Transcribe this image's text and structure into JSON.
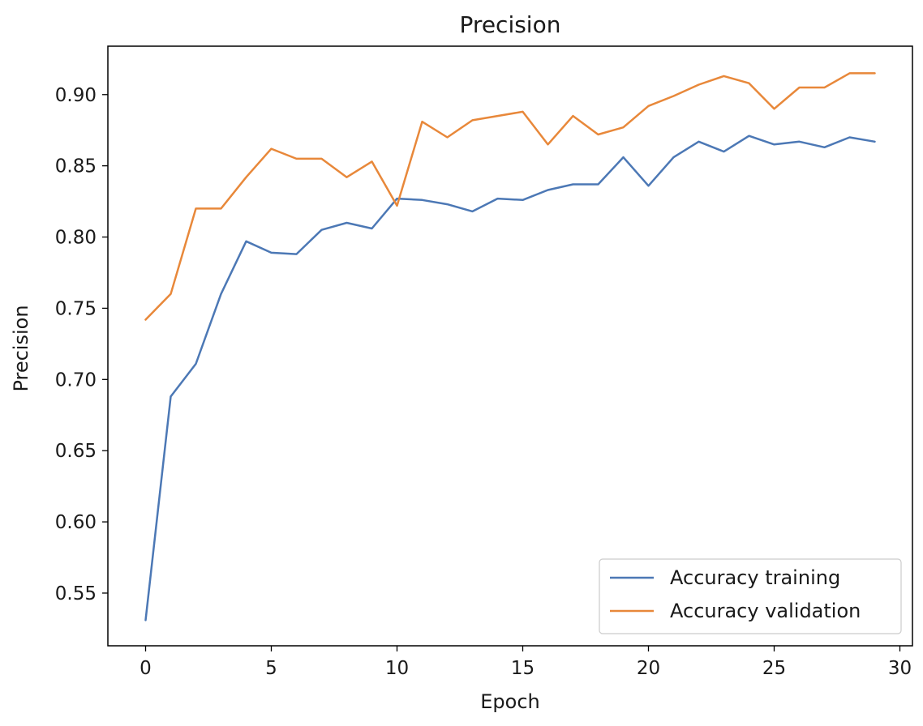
{
  "chart_data": {
    "type": "line",
    "title": "Precision",
    "xlabel": "Epoch",
    "ylabel": "Precision",
    "xlim": [
      -1.5,
      30.5
    ],
    "ylim": [
      0.513,
      0.934
    ],
    "xticks": [
      0,
      5,
      10,
      15,
      20,
      25,
      30
    ],
    "xtick_labels": [
      "0",
      "5",
      "10",
      "15",
      "20",
      "25",
      "30"
    ],
    "yticks": [
      0.55,
      0.6,
      0.65,
      0.7,
      0.75,
      0.8,
      0.85,
      0.9
    ],
    "ytick_labels": [
      "0.55",
      "0.60",
      "0.65",
      "0.70",
      "0.75",
      "0.80",
      "0.85",
      "0.90"
    ],
    "grid": false,
    "legend_position": "bottom-right",
    "x": [
      0,
      1,
      2,
      3,
      4,
      5,
      6,
      7,
      8,
      9,
      10,
      11,
      12,
      13,
      14,
      15,
      16,
      17,
      18,
      19,
      20,
      21,
      22,
      23,
      24,
      25,
      26,
      27,
      28,
      29
    ],
    "series": [
      {
        "name": "Accuracy training",
        "color": "#4c78b5",
        "values": [
          0.531,
          0.688,
          0.711,
          0.76,
          0.797,
          0.789,
          0.788,
          0.805,
          0.81,
          0.806,
          0.827,
          0.826,
          0.823,
          0.818,
          0.827,
          0.826,
          0.833,
          0.837,
          0.837,
          0.856,
          0.836,
          0.856,
          0.867,
          0.86,
          0.871,
          0.865,
          0.867,
          0.863,
          0.87,
          0.867
        ]
      },
      {
        "name": "Accuracy validation",
        "color": "#e8883a",
        "values": [
          0.742,
          0.76,
          0.82,
          0.82,
          0.842,
          0.862,
          0.855,
          0.855,
          0.842,
          0.853,
          0.822,
          0.881,
          0.87,
          0.882,
          0.885,
          0.888,
          0.865,
          0.885,
          0.872,
          0.877,
          0.892,
          0.899,
          0.907,
          0.913,
          0.908,
          0.89,
          0.905,
          0.905,
          0.915,
          0.915
        ]
      }
    ]
  }
}
